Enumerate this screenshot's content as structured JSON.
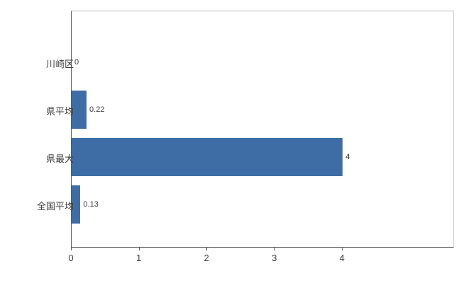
{
  "chart_data": {
    "type": "bar",
    "orientation": "horizontal",
    "title": "",
    "categories": [
      "川崎区",
      "県平均",
      "県最大",
      "全国平均"
    ],
    "values": [
      0,
      0.22,
      4,
      0.13
    ],
    "value_labels": [
      "0",
      "0.22",
      "4",
      "0.13"
    ],
    "x_tick_labels": [
      "0",
      "1",
      "2",
      "3",
      "4"
    ],
    "x_tick_values": [
      0,
      1,
      2,
      3,
      4
    ],
    "xlim": [
      0,
      5.65
    ],
    "grid": false,
    "legend_position": "none",
    "bar_color": "#3e6da5",
    "axis_color": "#595959",
    "label_color": "#404040",
    "background_color": "#ffffff"
  }
}
